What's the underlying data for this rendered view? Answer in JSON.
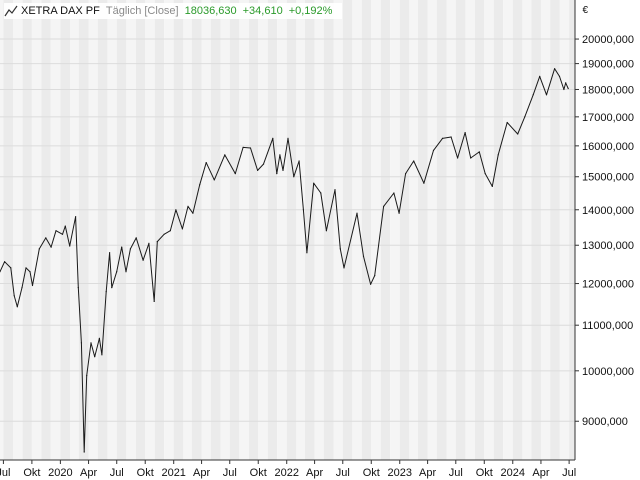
{
  "header": {
    "instrument": "XETRA DAX PF",
    "interval": "Täglich [Close]",
    "last_value": "18036,630",
    "change_abs": "+34,610",
    "change_pct": "+0,192%"
  },
  "colors": {
    "line": "#1a1a1a",
    "band_light": "#f5f5f5",
    "band_dark": "#ebebeb",
    "grid": "#dcdcdc",
    "positive": "#2a9a2a",
    "text": "#111111"
  },
  "chart_data": {
    "type": "line",
    "title": "",
    "xlabel": "",
    "ylabel": "",
    "y_unit": "€",
    "grid": true,
    "y_scale": "log",
    "ylim": [
      8300,
      21700
    ],
    "xlim": [
      "2019-06-20",
      "2024-07-20"
    ],
    "y_ticks": [
      9000,
      10000,
      11000,
      12000,
      13000,
      14000,
      15000,
      16000,
      17000,
      18000,
      19000,
      20000
    ],
    "y_tick_labels": [
      "9000,000",
      "10000,000",
      "11000,000",
      "12000,000",
      "13000,000",
      "14000,000",
      "15000,000",
      "16000,000",
      "17000,000",
      "18000,000",
      "19000,000",
      "20000,000"
    ],
    "x_ticks": [
      {
        "label": "Jul",
        "date": "2019-07-01"
      },
      {
        "label": "Okt",
        "date": "2019-10-01"
      },
      {
        "label": "2020",
        "date": "2020-01-01"
      },
      {
        "label": "Apr",
        "date": "2020-04-01"
      },
      {
        "label": "Jul",
        "date": "2020-07-01"
      },
      {
        "label": "Okt",
        "date": "2020-10-01"
      },
      {
        "label": "2021",
        "date": "2021-01-01"
      },
      {
        "label": "Apr",
        "date": "2021-04-01"
      },
      {
        "label": "Jul",
        "date": "2021-07-01"
      },
      {
        "label": "Okt",
        "date": "2021-10-01"
      },
      {
        "label": "2022",
        "date": "2022-01-01"
      },
      {
        "label": "Apr",
        "date": "2022-04-01"
      },
      {
        "label": "Jul",
        "date": "2022-07-01"
      },
      {
        "label": "Okt",
        "date": "2022-10-01"
      },
      {
        "label": "2023",
        "date": "2023-01-01"
      },
      {
        "label": "Apr",
        "date": "2023-04-01"
      },
      {
        "label": "Jul",
        "date": "2023-07-01"
      },
      {
        "label": "Okt",
        "date": "2023-10-01"
      },
      {
        "label": "2024",
        "date": "2024-01-01"
      },
      {
        "label": "Apr",
        "date": "2024-04-01"
      },
      {
        "label": "Jul",
        "date": "2024-07-01"
      }
    ],
    "series": [
      {
        "name": "",
        "points": [
          [
            "2019-06-20",
            12300
          ],
          [
            "2019-07-05",
            12560
          ],
          [
            "2019-07-25",
            12400
          ],
          [
            "2019-08-05",
            11700
          ],
          [
            "2019-08-15",
            11430
          ],
          [
            "2019-08-30",
            11900
          ],
          [
            "2019-09-12",
            12400
          ],
          [
            "2019-09-25",
            12300
          ],
          [
            "2019-10-03",
            11950
          ],
          [
            "2019-10-25",
            12900
          ],
          [
            "2019-11-15",
            13200
          ],
          [
            "2019-12-02",
            12950
          ],
          [
            "2019-12-18",
            13400
          ],
          [
            "2020-01-08",
            13300
          ],
          [
            "2020-01-17",
            13530
          ],
          [
            "2020-01-31",
            12980
          ],
          [
            "2020-02-19",
            13800
          ],
          [
            "2020-02-28",
            11900
          ],
          [
            "2020-03-09",
            10600
          ],
          [
            "2020-03-18",
            8440
          ],
          [
            "2020-03-26",
            9900
          ],
          [
            "2020-04-09",
            10600
          ],
          [
            "2020-04-21",
            10300
          ],
          [
            "2020-05-06",
            10700
          ],
          [
            "2020-05-14",
            10340
          ],
          [
            "2020-05-28",
            11800
          ],
          [
            "2020-06-08",
            12800
          ],
          [
            "2020-06-15",
            11900
          ],
          [
            "2020-07-01",
            12300
          ],
          [
            "2020-07-17",
            12950
          ],
          [
            "2020-07-31",
            12300
          ],
          [
            "2020-08-14",
            12900
          ],
          [
            "2020-09-02",
            13200
          ],
          [
            "2020-09-24",
            12600
          ],
          [
            "2020-10-13",
            13050
          ],
          [
            "2020-10-30",
            11560
          ],
          [
            "2020-11-09",
            13100
          ],
          [
            "2020-12-01",
            13300
          ],
          [
            "2020-12-21",
            13400
          ],
          [
            "2021-01-08",
            14000
          ],
          [
            "2021-01-29",
            13450
          ],
          [
            "2021-02-16",
            14100
          ],
          [
            "2021-03-04",
            13900
          ],
          [
            "2021-03-26",
            14750
          ],
          [
            "2021-04-16",
            15450
          ],
          [
            "2021-05-12",
            14900
          ],
          [
            "2021-06-15",
            15700
          ],
          [
            "2021-07-19",
            15100
          ],
          [
            "2021-08-13",
            15950
          ],
          [
            "2021-09-06",
            15930
          ],
          [
            "2021-09-29",
            15200
          ],
          [
            "2021-10-18",
            15400
          ],
          [
            "2021-11-17",
            16250
          ],
          [
            "2021-11-30",
            15100
          ],
          [
            "2021-12-10",
            15700
          ],
          [
            "2021-12-20",
            15200
          ],
          [
            "2022-01-05",
            16250
          ],
          [
            "2022-01-24",
            15000
          ],
          [
            "2022-02-10",
            15500
          ],
          [
            "2022-02-24",
            14000
          ],
          [
            "2022-03-07",
            12800
          ],
          [
            "2022-03-29",
            14800
          ],
          [
            "2022-04-21",
            14500
          ],
          [
            "2022-05-09",
            13400
          ],
          [
            "2022-06-06",
            14600
          ],
          [
            "2022-06-23",
            12900
          ],
          [
            "2022-07-05",
            12400
          ],
          [
            "2022-08-16",
            13900
          ],
          [
            "2022-09-06",
            12700
          ],
          [
            "2022-09-29",
            11980
          ],
          [
            "2022-10-12",
            12200
          ],
          [
            "2022-11-10",
            14100
          ],
          [
            "2022-12-13",
            14500
          ],
          [
            "2022-12-30",
            13900
          ],
          [
            "2023-01-20",
            15100
          ],
          [
            "2023-02-15",
            15500
          ],
          [
            "2023-03-20",
            14800
          ],
          [
            "2023-04-20",
            15850
          ],
          [
            "2023-05-19",
            16250
          ],
          [
            "2023-06-16",
            16300
          ],
          [
            "2023-07-07",
            15600
          ],
          [
            "2023-07-31",
            16450
          ],
          [
            "2023-08-18",
            15600
          ],
          [
            "2023-09-15",
            15800
          ],
          [
            "2023-10-04",
            15100
          ],
          [
            "2023-10-27",
            14700
          ],
          [
            "2023-11-15",
            15700
          ],
          [
            "2023-12-14",
            16800
          ],
          [
            "2024-01-17",
            16400
          ],
          [
            "2024-02-09",
            17000
          ],
          [
            "2024-03-07",
            17800
          ],
          [
            "2024-03-28",
            18500
          ],
          [
            "2024-04-19",
            17800
          ],
          [
            "2024-05-15",
            18800
          ],
          [
            "2024-05-31",
            18500
          ],
          [
            "2024-06-14",
            18000
          ],
          [
            "2024-06-20",
            18250
          ],
          [
            "2024-06-28",
            18036
          ]
        ]
      }
    ]
  }
}
